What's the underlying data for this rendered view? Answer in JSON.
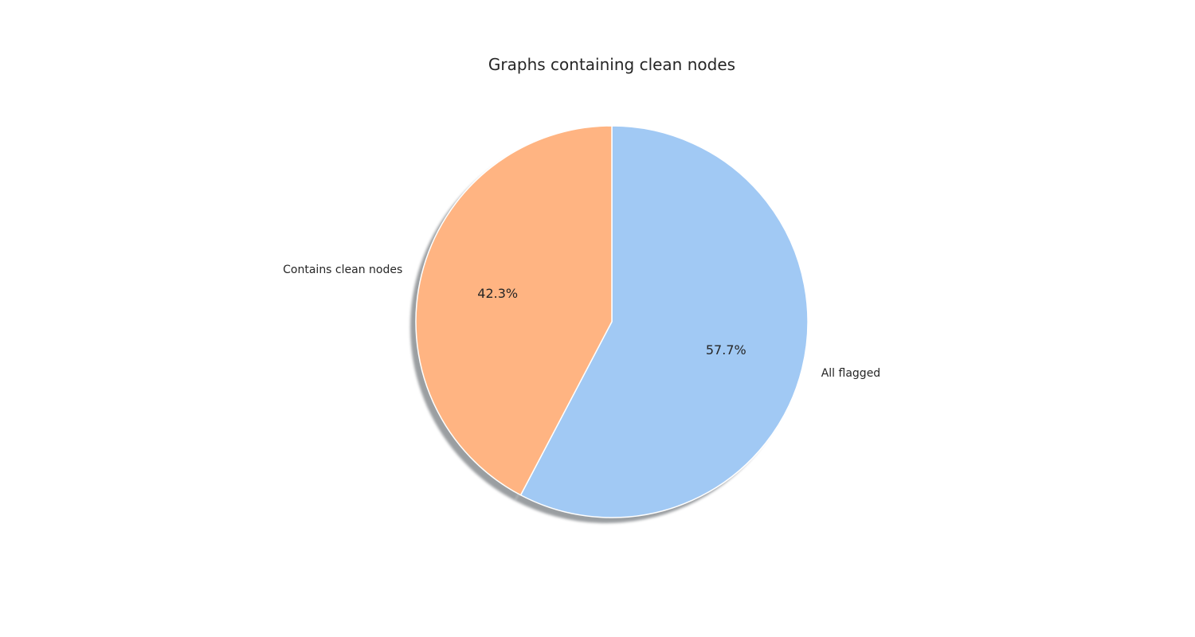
{
  "chart_data": {
    "type": "pie",
    "title": "Graphs containing clean nodes",
    "start_angle_deg": 90,
    "direction": "clockwise",
    "shadow": true,
    "slices": [
      {
        "label": "All flagged",
        "value": 57.7,
        "pct_label": "57.7%",
        "color": "#a1c9f4"
      },
      {
        "label": "Contains clean nodes",
        "value": 42.3,
        "pct_label": "42.3%",
        "color": "#ffb482"
      }
    ]
  }
}
